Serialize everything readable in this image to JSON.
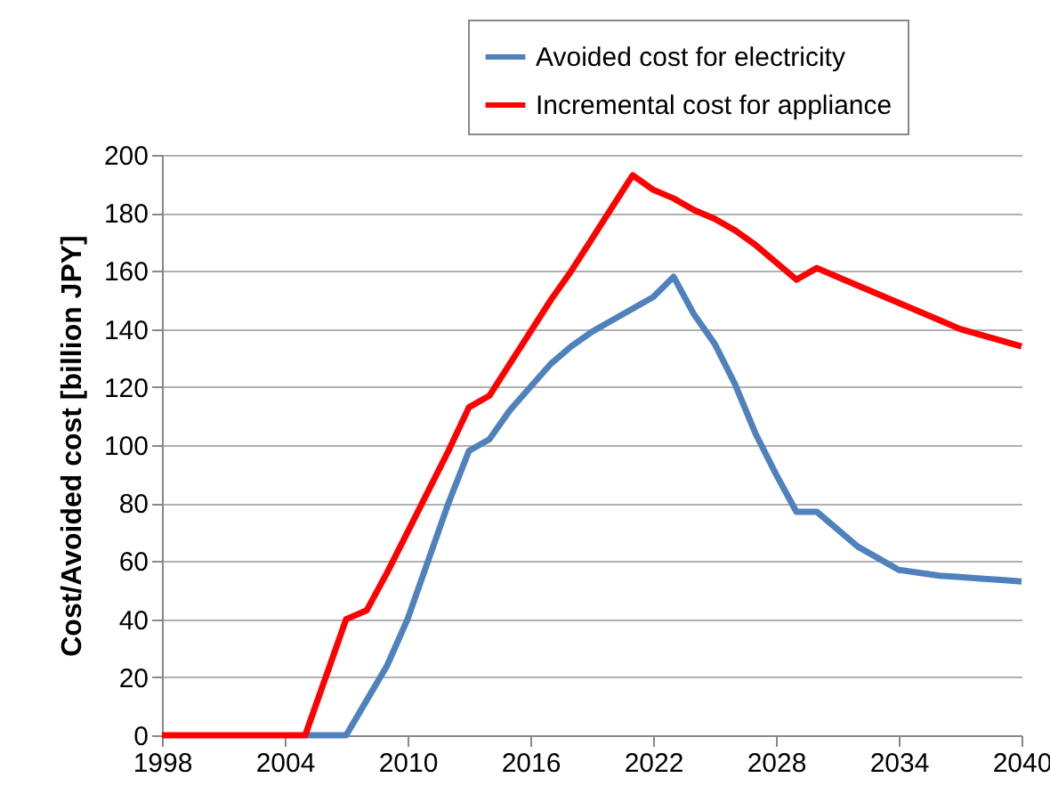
{
  "chart_data": {
    "type": "line",
    "ylabel": "Cost/Avoided cost [billion JPY]",
    "x": [
      1998,
      1999,
      2000,
      2001,
      2002,
      2003,
      2004,
      2005,
      2006,
      2007,
      2008,
      2009,
      2010,
      2011,
      2012,
      2013,
      2014,
      2015,
      2016,
      2017,
      2018,
      2019,
      2020,
      2021,
      2022,
      2023,
      2024,
      2025,
      2026,
      2027,
      2028,
      2029,
      2030,
      2031,
      2032,
      2033,
      2034,
      2035,
      2036,
      2037,
      2038,
      2039,
      2040
    ],
    "series": [
      {
        "name": "Avoided cost for electricity",
        "color": "#4f81bd",
        "values": [
          null,
          null,
          null,
          null,
          null,
          null,
          null,
          0,
          0,
          0,
          12,
          24,
          40,
          60,
          80,
          98,
          102,
          112,
          120,
          128,
          134,
          139,
          143,
          147,
          151,
          158,
          145,
          135,
          121,
          104,
          90,
          77,
          77,
          71,
          65,
          61,
          57,
          56,
          55,
          54.5,
          54,
          53.5,
          53
        ]
      },
      {
        "name": "Incremental cost for appliance",
        "color": "#ff0000",
        "values": [
          0,
          0,
          0,
          0,
          0,
          0,
          0,
          0,
          20,
          40,
          43,
          56,
          70,
          84,
          98,
          113,
          117,
          128,
          139,
          150,
          160,
          171,
          182,
          193,
          188,
          185,
          181,
          178,
          174,
          169,
          163,
          157,
          161,
          158,
          155,
          152,
          149,
          146,
          143,
          140,
          138,
          136,
          134
        ]
      }
    ],
    "xlim": [
      1998,
      2040
    ],
    "xticks": [
      1998,
      2004,
      2010,
      2016,
      2022,
      2028,
      2034,
      2040
    ],
    "ylim": [
      0,
      200
    ],
    "yticks": [
      0,
      20,
      40,
      60,
      80,
      100,
      120,
      140,
      160,
      180,
      200
    ],
    "grid": "y",
    "legend": "top right",
    "marker": "none",
    "line_style": "solid"
  }
}
